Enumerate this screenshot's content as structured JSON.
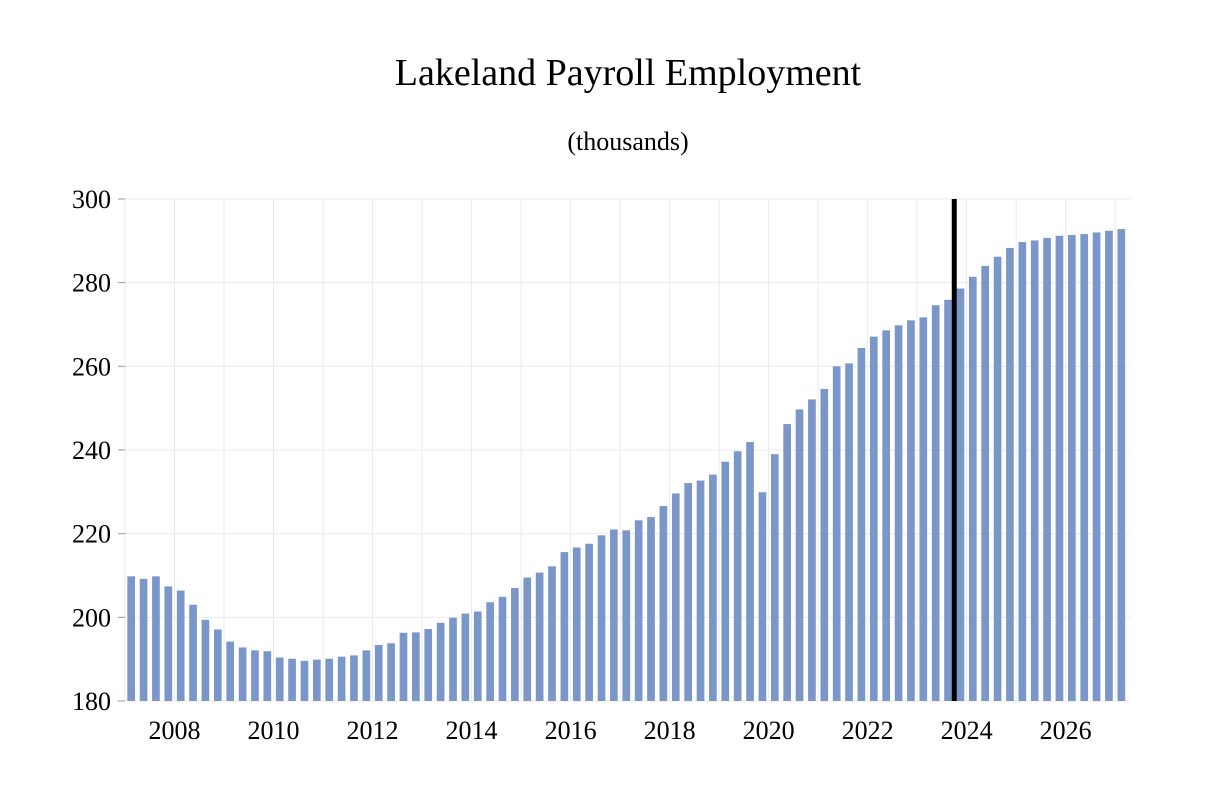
{
  "chart_data": {
    "type": "bar",
    "title": "Lakeland Payroll Employment",
    "subtitle": "(thousands)",
    "xlabel": "",
    "ylabel": "",
    "ylim": [
      180,
      300
    ],
    "yticks": [
      180,
      200,
      220,
      240,
      260,
      280,
      300
    ],
    "xlim": [
      2007.0,
      2027.3
    ],
    "xticks": [
      2008,
      2010,
      2012,
      2014,
      2016,
      2018,
      2020,
      2022,
      2024,
      2026
    ],
    "frequency": "quarterly",
    "start_period": "2007 Q1",
    "forecast_marker_x": 2023.75,
    "grid": true,
    "bar_color": "#7b96c9",
    "marker_color": "#000000",
    "values": [
      209.8,
      209.2,
      209.8,
      207.4,
      206.4,
      203.0,
      199.4,
      197.1,
      194.2,
      192.8,
      192.1,
      191.9,
      190.4,
      190.1,
      189.6,
      189.9,
      190.1,
      190.6,
      190.9,
      192.1,
      193.4,
      193.8,
      196.3,
      196.4,
      197.2,
      198.7,
      199.9,
      200.9,
      201.4,
      203.6,
      204.9,
      207.0,
      209.5,
      210.7,
      212.2,
      215.6,
      216.7,
      217.6,
      219.6,
      221.0,
      220.8,
      223.2,
      224.0,
      226.6,
      229.6,
      232.1,
      232.7,
      234.1,
      237.2,
      239.7,
      241.9,
      229.9,
      239.0,
      246.2,
      249.7,
      252.1,
      254.6,
      260.0,
      260.7,
      264.4,
      267.1,
      268.6,
      269.8,
      271.0,
      271.7,
      274.6,
      275.9,
      278.6,
      281.4,
      284.0,
      286.2,
      288.3,
      289.7,
      290.1,
      290.7,
      291.2,
      291.4,
      291.6,
      292.0,
      292.4,
      292.8
    ]
  }
}
